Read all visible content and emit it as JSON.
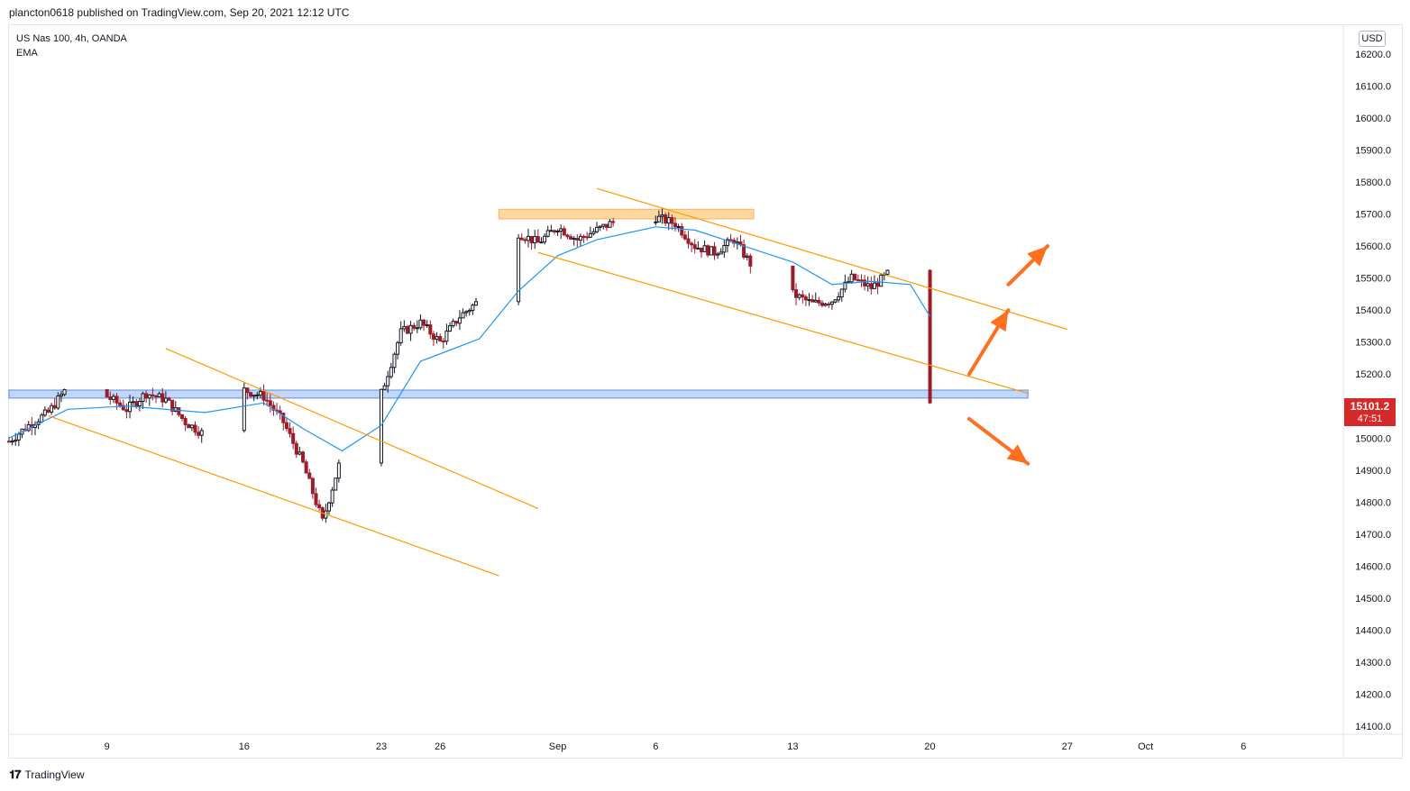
{
  "header": {
    "published_line": "plancton0618 published on TradingView.com, Sep 20, 2021 12:12 UTC"
  },
  "symbol": {
    "name_line": "US Nas 100, 4h, OANDA",
    "indicator": "EMA"
  },
  "currency": "USD",
  "last_price": {
    "value": "15101.2",
    "countdown": "47:51"
  },
  "footer": {
    "brand": "TradingView",
    "logo": "tv-logo-icon"
  },
  "colors": {
    "up": "#131722",
    "down": "#9c1c2a",
    "ema": "#2196f3",
    "channel": "#ff9800",
    "resistance_zone": "#ffcc80",
    "support_zone": "#90b7f5",
    "arrow": "#fe6f20",
    "price_tag": "#d62a2a"
  },
  "chart_data": {
    "type": "candlestick",
    "title": "",
    "ylim": [
      14050,
      16250
    ],
    "y_ticks": [
      16200,
      16100,
      16000,
      15900,
      15800,
      15700,
      15600,
      15500,
      15400,
      15300,
      15200,
      15100,
      15000,
      14900,
      14800,
      14700,
      14600,
      14500,
      14400,
      14300,
      14200,
      14100
    ],
    "x_ticks": [
      {
        "label": "9",
        "date": "2021-08-09"
      },
      {
        "label": "16",
        "date": "2021-08-16"
      },
      {
        "label": "23",
        "date": "2021-08-23"
      },
      {
        "label": "26",
        "date": "2021-08-26"
      },
      {
        "label": "Sep",
        "date": "2021-09-01"
      },
      {
        "label": "6",
        "date": "2021-09-06"
      },
      {
        "label": "13",
        "date": "2021-09-13"
      },
      {
        "label": "20",
        "date": "2021-09-20"
      },
      {
        "label": "27",
        "date": "2021-09-27"
      },
      {
        "label": "Oct",
        "date": "2021-10-01"
      },
      {
        "label": "6",
        "date": "2021-10-06"
      }
    ],
    "x_range": [
      "2021-08-04",
      "2021-10-11"
    ],
    "grid": false,
    "price_path": [
      [
        "2021-08-04",
        14990
      ],
      [
        "2021-08-05",
        15040
      ],
      [
        "2021-08-06",
        15080
      ],
      [
        "2021-08-07",
        15160
      ],
      [
        "2021-08-09",
        15130
      ],
      [
        "2021-08-10",
        15090
      ],
      [
        "2021-08-11",
        15140
      ],
      [
        "2021-08-12",
        15120
      ],
      [
        "2021-08-13",
        15050
      ],
      [
        "2021-08-14",
        15010
      ],
      [
        "2021-08-15",
        15090
      ],
      [
        "2021-08-16",
        15150
      ],
      [
        "2021-08-17",
        15130
      ],
      [
        "2021-08-18",
        15050
      ],
      [
        "2021-08-19",
        14920
      ],
      [
        "2021-08-20",
        14740
      ],
      [
        "2021-08-21",
        14950
      ],
      [
        "2021-08-22",
        14990
      ],
      [
        "2021-08-23",
        15140
      ],
      [
        "2021-08-24",
        15330
      ],
      [
        "2021-08-25",
        15360
      ],
      [
        "2021-08-26",
        15300
      ],
      [
        "2021-08-27",
        15380
      ],
      [
        "2021-08-28",
        15430
      ],
      [
        "2021-08-29",
        15620
      ],
      [
        "2021-08-30",
        15640
      ],
      [
        "2021-08-31",
        15610
      ],
      [
        "2021-09-01",
        15660
      ],
      [
        "2021-09-02",
        15620
      ],
      [
        "2021-09-03",
        15650
      ],
      [
        "2021-09-04",
        15680
      ],
      [
        "2021-09-06",
        15690
      ],
      [
        "2021-09-07",
        15670
      ],
      [
        "2021-09-08",
        15600
      ],
      [
        "2021-09-09",
        15580
      ],
      [
        "2021-09-10",
        15620
      ],
      [
        "2021-09-11",
        15530
      ],
      [
        "2021-09-12",
        15460
      ],
      [
        "2021-09-13",
        15450
      ],
      [
        "2021-09-14",
        15420
      ],
      [
        "2021-09-15",
        15430
      ],
      [
        "2021-09-16",
        15500
      ],
      [
        "2021-09-17",
        15470
      ],
      [
        "2021-09-18",
        15520
      ],
      [
        "2021-09-19",
        15350
      ],
      [
        "2021-09-20",
        15101
      ]
    ],
    "ema": [
      [
        "2021-08-04",
        15000
      ],
      [
        "2021-08-07",
        15090
      ],
      [
        "2021-08-10",
        15100
      ],
      [
        "2021-08-14",
        15080
      ],
      [
        "2021-08-17",
        15110
      ],
      [
        "2021-08-19",
        15030
      ],
      [
        "2021-08-21",
        14960
      ],
      [
        "2021-08-23",
        15040
      ],
      [
        "2021-08-25",
        15240
      ],
      [
        "2021-08-28",
        15310
      ],
      [
        "2021-08-30",
        15460
      ],
      [
        "2021-09-01",
        15570
      ],
      [
        "2021-09-03",
        15620
      ],
      [
        "2021-09-06",
        15660
      ],
      [
        "2021-09-08",
        15650
      ],
      [
        "2021-09-10",
        15610
      ],
      [
        "2021-09-13",
        15550
      ],
      [
        "2021-09-15",
        15480
      ],
      [
        "2021-09-17",
        15490
      ],
      [
        "2021-09-19",
        15480
      ],
      [
        "2021-09-20",
        15380
      ]
    ],
    "zones": [
      {
        "name": "resistance",
        "from": "2021-08-29",
        "to": "2021-09-11",
        "low": 15685,
        "high": 15715
      },
      {
        "name": "support",
        "from": "2021-08-04",
        "to": "2021-09-25",
        "low": 15125,
        "high": 15150
      }
    ],
    "channels": [
      {
        "name": "falling-channel-1-upper",
        "p1": [
          "2021-08-12",
          15280
        ],
        "p2": [
          "2021-08-31",
          14780
        ]
      },
      {
        "name": "falling-channel-1-lower",
        "p1": [
          "2021-08-06",
          15070
        ],
        "p2": [
          "2021-08-29",
          14570
        ]
      },
      {
        "name": "falling-channel-2-upper",
        "p1": [
          "2021-09-03",
          15780
        ],
        "p2": [
          "2021-09-27",
          15340
        ]
      },
      {
        "name": "falling-channel-2-lower",
        "p1": [
          "2021-08-31",
          15580
        ],
        "p2": [
          "2021-09-25",
          15140
        ]
      }
    ],
    "arrows": [
      {
        "name": "bullish-arrow-1",
        "from": [
          "2021-09-22",
          15200
        ],
        "to": [
          "2021-09-24",
          15400
        ]
      },
      {
        "name": "bullish-arrow-2",
        "from": [
          "2021-09-24",
          15480
        ],
        "to": [
          "2021-09-26",
          15600
        ]
      },
      {
        "name": "bearish-arrow",
        "from": [
          "2021-09-22",
          15060
        ],
        "to": [
          "2021-09-25",
          14920
        ]
      }
    ]
  }
}
